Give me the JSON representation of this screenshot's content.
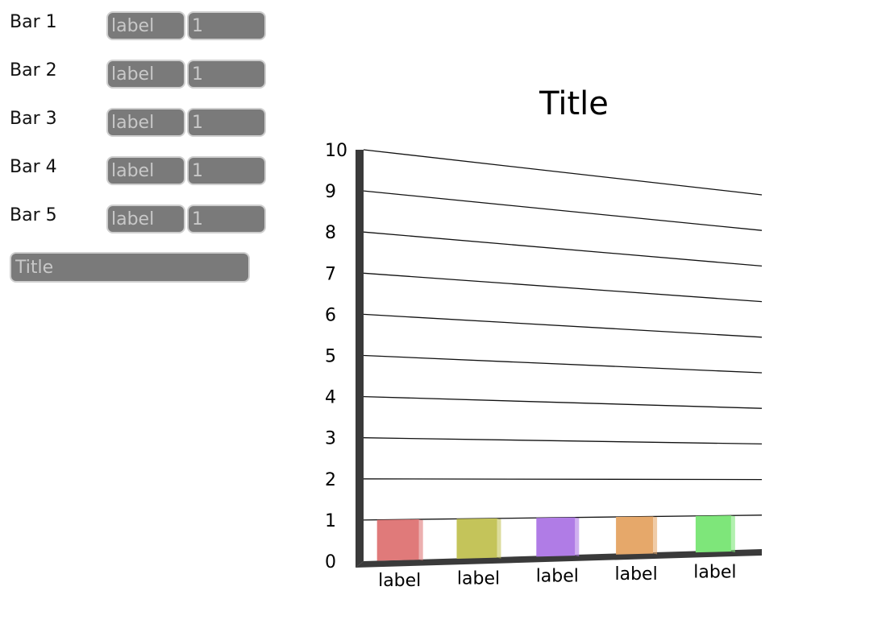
{
  "bars": [
    {
      "row_label": "Bar 1",
      "label_placeholder": "label",
      "value_placeholder": "1"
    },
    {
      "row_label": "Bar 2",
      "label_placeholder": "label",
      "value_placeholder": "1"
    },
    {
      "row_label": "Bar 3",
      "label_placeholder": "label",
      "value_placeholder": "1"
    },
    {
      "row_label": "Bar 4",
      "label_placeholder": "label",
      "value_placeholder": "1"
    },
    {
      "row_label": "Bar 5",
      "label_placeholder": "label",
      "value_placeholder": "1"
    }
  ],
  "title_input": {
    "placeholder": "Title"
  },
  "chart_data": {
    "type": "bar",
    "title": "Title",
    "categories": [
      "label",
      "label",
      "label",
      "label",
      "label"
    ],
    "values": [
      1,
      1,
      1,
      1,
      1
    ],
    "colors": [
      "#e07a7a",
      "#c4c45a",
      "#b07ce6",
      "#e6a86a",
      "#7ee67a"
    ],
    "ylim": [
      0,
      10
    ],
    "yticks": [
      "0",
      "1",
      "2",
      "3",
      "4",
      "5",
      "6",
      "7",
      "8",
      "9",
      "10"
    ],
    "grid": true
  }
}
